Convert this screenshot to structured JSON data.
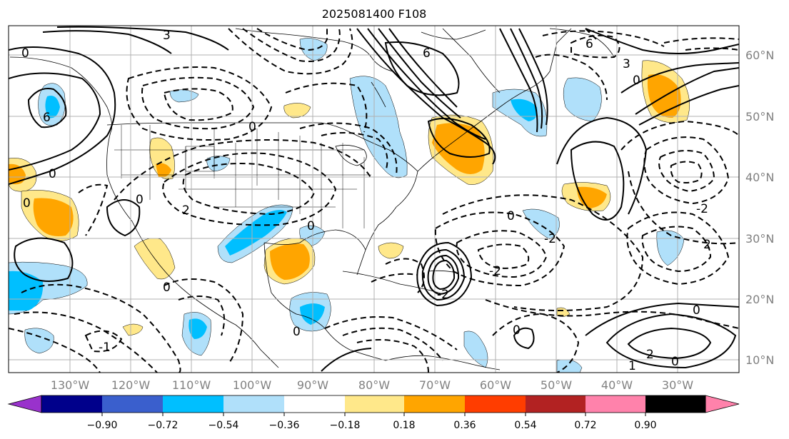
{
  "title": "2025081400 F108",
  "map": {
    "lat_labels": [
      "60°N",
      "50°N",
      "40°N",
      "30°N",
      "20°N",
      "10°N"
    ],
    "lon_labels": [
      "130°W",
      "120°W",
      "110°W",
      "100°W",
      "90°W",
      "80°W",
      "70°W",
      "60°W",
      "50°W",
      "40°W",
      "30°W"
    ]
  },
  "colorbar": {
    "tick_labels": [
      "−0.90",
      "−0.72",
      "−0.54",
      "−0.36",
      "−0.18",
      "0.18",
      "0.36",
      "0.54",
      "0.72",
      "0.90"
    ],
    "colors": [
      "#9932cc",
      "#00008b",
      "#3a5fcd",
      "#00bfff",
      "#b0e0fa",
      "#ffffff",
      "#ffe88a",
      "#ffa500",
      "#ff3d00",
      "#b22222",
      "#ff82ab"
    ]
  },
  "contour_labels": [
    "0",
    "3",
    "6",
    "-1",
    "-2",
    "0",
    "1",
    "2",
    "-3",
    "-6"
  ],
  "colors": {
    "pos_light": "#ffe88a",
    "pos_mid": "#ffa500",
    "neg_light": "#b0e0fa",
    "neg_mid": "#00bfff",
    "grid": "#b0b0b0"
  }
}
